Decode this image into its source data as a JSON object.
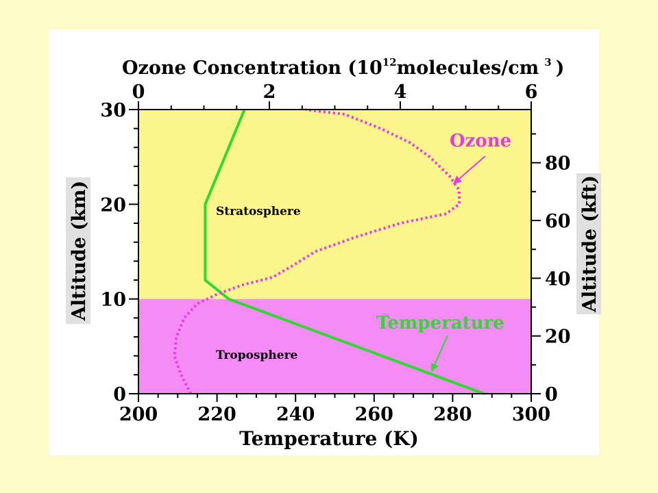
{
  "colors": {
    "slide_bg": "#fdfbc8",
    "panel_bg": "#ffffff",
    "stratosphere_fill": "#fbf58c",
    "troposphere_fill": "#f58cf5",
    "temperature_line": "#2fd92f",
    "ozone_line": "#e53be5"
  },
  "chart_data": {
    "type": "line",
    "top_axis": {
      "title_prefix": "Ozone Concentration (10",
      "title_sup1": "12",
      "title_mid": "molecules/cm",
      "title_sup2": "3",
      "title_suffix": ")",
      "range": [
        0,
        6
      ],
      "ticks": [
        "0",
        "2",
        "4",
        "6"
      ]
    },
    "bottom_axis": {
      "title": "Temperature (K)",
      "range": [
        200,
        300
      ],
      "ticks": [
        "200",
        "220",
        "240",
        "260",
        "280",
        "300"
      ]
    },
    "left_axis": {
      "title": "Altitude (km)",
      "range": [
        0,
        30
      ],
      "ticks": [
        "0",
        "10",
        "20",
        "30"
      ]
    },
    "right_axis": {
      "title": "Altitude (kft)",
      "ticks": [
        "0",
        "20",
        "40",
        "60",
        "80"
      ]
    },
    "regions": [
      {
        "name": "Troposphere",
        "from": 0,
        "to": 10
      },
      {
        "name": "Stratosphere",
        "from": 10,
        "to": 30
      }
    ],
    "series": [
      {
        "name": "Temperature",
        "axis": "bottom",
        "style": "solid",
        "points": [
          [
            288,
            0
          ],
          [
            223,
            10
          ],
          [
            217,
            12
          ],
          [
            217,
            20
          ],
          [
            227,
            30
          ]
        ]
      },
      {
        "name": "Ozone",
        "axis": "top",
        "style": "dotted",
        "points": [
          [
            0.8,
            0
          ],
          [
            0.65,
            2
          ],
          [
            0.55,
            4
          ],
          [
            0.58,
            6
          ],
          [
            0.7,
            8
          ],
          [
            0.9,
            9.5
          ],
          [
            1.2,
            10.5
          ],
          [
            1.6,
            11.5
          ],
          [
            2.05,
            12.3
          ],
          [
            2.35,
            13.5
          ],
          [
            2.7,
            15
          ],
          [
            3.3,
            16.5
          ],
          [
            4.0,
            18
          ],
          [
            4.7,
            19
          ],
          [
            4.9,
            20
          ],
          [
            4.9,
            21.5
          ],
          [
            4.75,
            23
          ],
          [
            4.45,
            25
          ],
          [
            4.15,
            26.5
          ],
          [
            3.7,
            28
          ],
          [
            3.15,
            29.5
          ],
          [
            2.55,
            30
          ]
        ]
      }
    ],
    "annotations": [
      {
        "text": "Ozone",
        "series": "Ozone"
      },
      {
        "text": "Temperature",
        "series": "Temperature"
      }
    ]
  }
}
